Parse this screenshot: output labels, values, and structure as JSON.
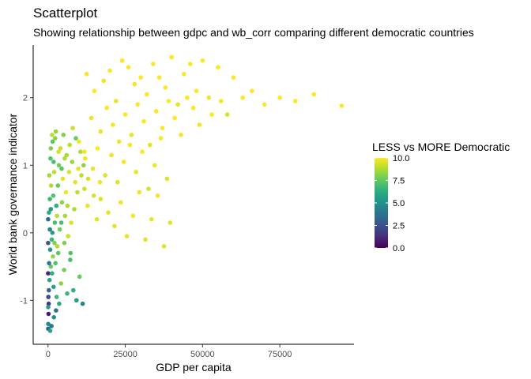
{
  "chart_data": {
    "type": "scatter",
    "title": "Scatterplot",
    "subtitle": "Showing relationship between gdpc and wb_corr comparing different democratic countries",
    "xlabel": "GDP per capita",
    "ylabel": "World bank governance indicator",
    "xlim": [
      -4800,
      99000
    ],
    "ylim": [
      -1.65,
      2.78
    ],
    "x_ticks": [
      0,
      25000,
      50000,
      75000
    ],
    "x_tick_labels": [
      "0",
      "25000",
      "50000",
      "75000"
    ],
    "y_ticks": [
      -1,
      0,
      1,
      2
    ],
    "y_tick_labels": [
      "-1",
      "0",
      "1",
      "2"
    ],
    "grid": false,
    "legend": {
      "title": "LESS vs MORE Democratic",
      "placement": "right",
      "range": [
        0,
        10
      ],
      "ticks": [
        0,
        2.5,
        5,
        7.5,
        10
      ],
      "tick_labels": [
        "0.0",
        "2.5",
        "5.0",
        "7.5",
        "10.0"
      ],
      "colors": [
        "#440154",
        "#472d7b",
        "#3b528b",
        "#2c728e",
        "#21918c",
        "#28ae80",
        "#5ec962",
        "#addc30",
        "#fde725"
      ]
    },
    "color_variable_range": [
      0,
      10
    ],
    "points": [
      [
        12500,
        2.35,
        9.9
      ],
      [
        15000,
        2.1,
        10
      ],
      [
        18000,
        2.25,
        9.8
      ],
      [
        20000,
        2.4,
        10
      ],
      [
        22000,
        1.95,
        9.7
      ],
      [
        24000,
        2.55,
        10
      ],
      [
        26000,
        2.45,
        10
      ],
      [
        28000,
        2.2,
        9.9
      ],
      [
        30000,
        2.3,
        10
      ],
      [
        32000,
        2.05,
        10
      ],
      [
        34000,
        2.5,
        10
      ],
      [
        36000,
        2.3,
        10
      ],
      [
        38000,
        2.15,
        10
      ],
      [
        40000,
        2.6,
        10
      ],
      [
        42000,
        1.9,
        9.6
      ],
      [
        44000,
        2.35,
        10
      ],
      [
        46000,
        2.5,
        10
      ],
      [
        48000,
        2.1,
        10
      ],
      [
        50000,
        2.55,
        10
      ],
      [
        52000,
        2.0,
        9.8
      ],
      [
        55000,
        2.45,
        10
      ],
      [
        58000,
        1.75,
        9.4
      ],
      [
        60000,
        2.3,
        10
      ],
      [
        63000,
        2.0,
        10
      ],
      [
        66000,
        2.1,
        10
      ],
      [
        70000,
        1.9,
        10
      ],
      [
        75000,
        2.0,
        10
      ],
      [
        80000,
        1.95,
        10
      ],
      [
        86000,
        2.05,
        10
      ],
      [
        95000,
        1.88,
        10
      ],
      [
        14000,
        1.7,
        9.8
      ],
      [
        17000,
        1.5,
        9.7
      ],
      [
        19000,
        1.85,
        10
      ],
      [
        21000,
        1.6,
        9.9
      ],
      [
        23000,
        1.35,
        9.8
      ],
      [
        25000,
        1.75,
        10
      ],
      [
        27000,
        1.45,
        9.7
      ],
      [
        29000,
        1.9,
        10
      ],
      [
        31000,
        1.65,
        10
      ],
      [
        33000,
        1.3,
        9.6
      ],
      [
        35000,
        1.8,
        10
      ],
      [
        37000,
        1.55,
        10
      ],
      [
        39000,
        1.95,
        10
      ],
      [
        41000,
        1.7,
        10
      ],
      [
        43000,
        1.45,
        9.9
      ],
      [
        45000,
        2.0,
        10
      ],
      [
        47000,
        1.85,
        10
      ],
      [
        49000,
        1.6,
        9.8
      ],
      [
        53000,
        1.75,
        10
      ],
      [
        56000,
        1.95,
        10
      ],
      [
        10000,
        1.35,
        9.9
      ],
      [
        12000,
        1.1,
        9.8
      ],
      [
        14500,
        0.95,
        9.7
      ],
      [
        16000,
        1.25,
        10
      ],
      [
        18500,
        0.85,
        9.6
      ],
      [
        20500,
        1.15,
        9.8
      ],
      [
        22500,
        0.75,
        9.5
      ],
      [
        24500,
        1.05,
        9.9
      ],
      [
        26500,
        1.3,
        10
      ],
      [
        28500,
        0.9,
        9.7
      ],
      [
        30500,
        1.2,
        10
      ],
      [
        32500,
        0.65,
        9.4
      ],
      [
        34500,
        1.0,
        9.8
      ],
      [
        36500,
        1.4,
        10
      ],
      [
        38500,
        0.8,
        9.5
      ],
      [
        17000,
        0.5,
        9.6
      ],
      [
        19500,
        0.3,
        9.7
      ],
      [
        21500,
        0.1,
        9.6
      ],
      [
        23500,
        0.45,
        9.8
      ],
      [
        25500,
        -0.05,
        9.7
      ],
      [
        27500,
        0.25,
        9.9
      ],
      [
        29500,
        0.6,
        9.8
      ],
      [
        31500,
        -0.1,
        9.6
      ],
      [
        33500,
        0.2,
        9.7
      ],
      [
        35500,
        0.55,
        9.9
      ],
      [
        37500,
        -0.2,
        9.5
      ],
      [
        39500,
        0.15,
        9.6
      ],
      [
        8000,
        1.55,
        9.2
      ],
      [
        9000,
        1.4,
        7.6
      ],
      [
        10500,
        1.2,
        8.8
      ],
      [
        11500,
        1.0,
        8.2
      ],
      [
        13000,
        0.8,
        9.4
      ],
      [
        7000,
        1.3,
        9.0
      ],
      [
        6000,
        1.15,
        8.6
      ],
      [
        5000,
        1.45,
        8.0
      ],
      [
        4000,
        1.25,
        9.2
      ],
      [
        3500,
        1.0,
        7.8
      ],
      [
        2500,
        1.5,
        8.4
      ],
      [
        2000,
        0.9,
        9.0
      ],
      [
        1500,
        1.35,
        7.4
      ],
      [
        1000,
        0.7,
        8.8
      ],
      [
        800,
        1.1,
        7.2
      ],
      [
        600,
        0.5,
        6.8
      ],
      [
        400,
        0.85,
        8.6
      ],
      [
        300,
        0.3,
        6.2
      ],
      [
        9500,
        0.6,
        9.0
      ],
      [
        8500,
        0.35,
        8.8
      ],
      [
        7500,
        0.15,
        9.4
      ],
      [
        6500,
        -0.05,
        9.2
      ],
      [
        5500,
        0.25,
        8.6
      ],
      [
        4500,
        0.45,
        8.2
      ],
      [
        3800,
        0.05,
        7.8
      ],
      [
        3000,
        -0.2,
        8.8
      ],
      [
        2200,
        0.15,
        7.0
      ],
      [
        1600,
        -0.35,
        8.4
      ],
      [
        1200,
        -0.1,
        6.6
      ],
      [
        900,
        -0.5,
        7.6
      ],
      [
        700,
        -0.25,
        5.2
      ],
      [
        500,
        -0.7,
        6.0
      ],
      [
        350,
        -0.45,
        4.2
      ],
      [
        250,
        -0.85,
        3.4
      ],
      [
        200,
        -1.05,
        1.6
      ],
      [
        150,
        -1.2,
        0.8
      ],
      [
        100,
        -0.95,
        2.2
      ],
      [
        80,
        -1.35,
        4.8
      ],
      [
        60,
        -1.1,
        5.6
      ],
      [
        50,
        -1.42,
        3.0
      ],
      [
        40,
        -0.6,
        1.2
      ],
      [
        30,
        -0.15,
        2.8
      ],
      [
        20,
        0.2,
        3.6
      ],
      [
        600,
        0.05,
        4.6
      ],
      [
        900,
        0.35,
        5.4
      ],
      [
        1300,
        -0.6,
        6.4
      ],
      [
        1800,
        -0.8,
        5.8
      ],
      [
        2400,
        -0.45,
        7.2
      ],
      [
        2800,
        -0.95,
        6.8
      ],
      [
        3300,
        -0.3,
        7.4
      ],
      [
        4200,
        -0.75,
        8.2
      ],
      [
        5200,
        -0.55,
        7.8
      ],
      [
        6200,
        -0.9,
        6.6
      ],
      [
        7200,
        -0.4,
        7.0
      ],
      [
        8200,
        -0.85,
        6.4
      ],
      [
        9200,
        -1.0,
        5.6
      ],
      [
        10200,
        -0.65,
        7.6
      ],
      [
        11200,
        -1.05,
        4.4
      ],
      [
        1900,
        -1.25,
        5.0
      ],
      [
        2600,
        -1.15,
        3.8
      ],
      [
        3600,
        -1.05,
        6.2
      ],
      [
        1100,
        -1.38,
        4.0
      ],
      [
        700,
        -1.45,
        5.8
      ],
      [
        4800,
        0.8,
        9.6
      ],
      [
        5800,
        0.6,
        9.8
      ],
      [
        6800,
        0.9,
        9.4
      ],
      [
        7800,
        1.05,
        8.4
      ],
      [
        8800,
        0.75,
        9.6
      ],
      [
        12800,
        0.4,
        9.8
      ],
      [
        14800,
        0.55,
        9.4
      ],
      [
        15800,
        0.2,
        9.6
      ],
      [
        11800,
        0.65,
        9.2
      ],
      [
        16800,
        0.75,
        9.8
      ],
      [
        3200,
        0.7,
        7.6
      ],
      [
        2700,
        0.4,
        6.4
      ],
      [
        4300,
        0.15,
        7.0
      ],
      [
        5300,
        -0.15,
        8.0
      ],
      [
        6300,
        0.4,
        8.8
      ],
      [
        7300,
        -0.3,
        7.2
      ],
      [
        1400,
        0.0,
        5.6
      ],
      [
        1700,
        0.55,
        7.2
      ],
      [
        2100,
        -0.15,
        8.0
      ],
      [
        2900,
        0.25,
        9.0
      ],
      [
        900,
        1.25,
        8.0
      ],
      [
        1300,
        1.45,
        9.0
      ],
      [
        1800,
        1.05,
        7.0
      ],
      [
        2300,
        1.4,
        8.2
      ],
      [
        3400,
        1.2,
        9.4
      ],
      [
        4400,
        0.95,
        7.4
      ],
      [
        5400,
        1.1,
        8.8
      ],
      [
        9800,
        0.95,
        9.6
      ],
      [
        10800,
        0.85,
        9.0
      ],
      [
        11800,
        1.2,
        9.8
      ]
    ]
  }
}
